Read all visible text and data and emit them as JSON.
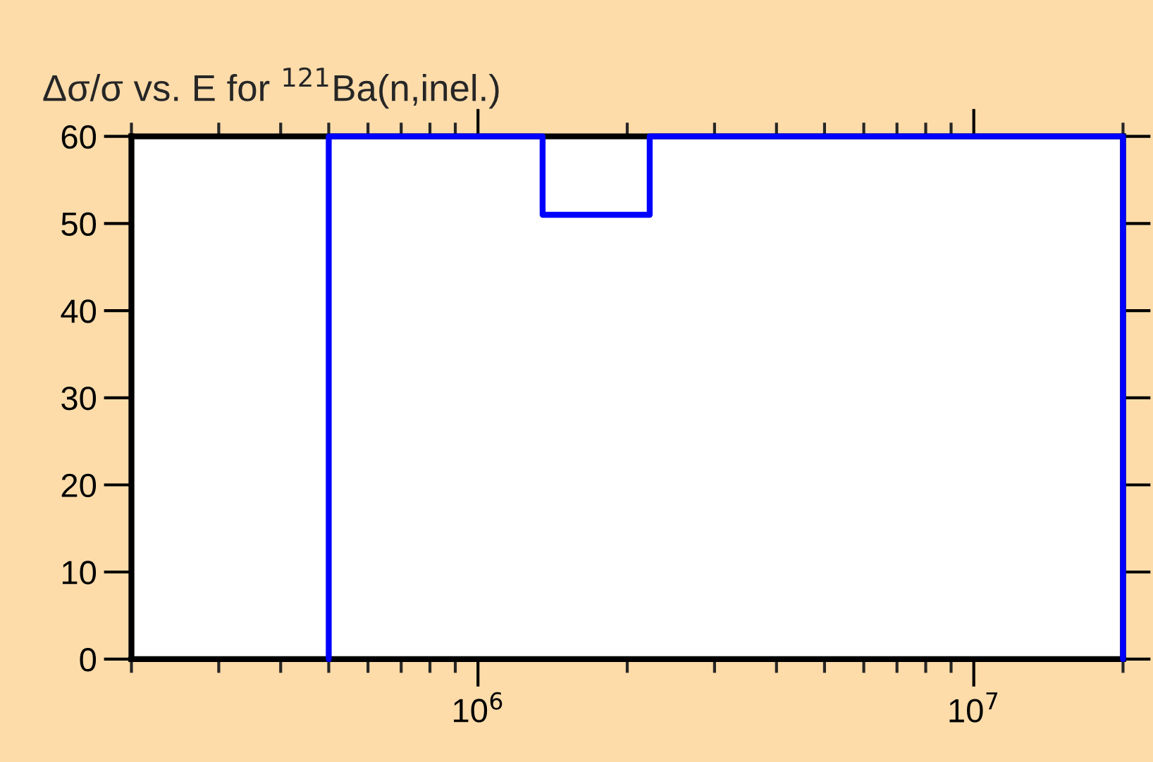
{
  "chart_data": {
    "type": "line",
    "title": "Δσ/σ vs. E for $^{121}$Ba(n,inel.)",
    "x": [
      500000,
      500000,
      1350000,
      1350000,
      2220000,
      2220000,
      20000000,
      20000000
    ],
    "series": [
      {
        "color": "#0000ff",
        "values": [
          0,
          60,
          60,
          51,
          51,
          60,
          60,
          0
        ]
      }
    ],
    "log": "x",
    "xlim": [
      200000,
      20000000
    ],
    "xticks": [
      {
        "value": 200000,
        "label": null
      },
      {
        "value": 300000,
        "label": null
      },
      {
        "value": 400000,
        "label": null
      },
      {
        "value": 500000,
        "label": null
      },
      {
        "value": 600000,
        "label": null
      },
      {
        "value": 700000,
        "label": null
      },
      {
        "value": 800000,
        "label": null
      },
      {
        "value": 900000,
        "label": null
      },
      {
        "value": 1000000,
        "label": "10$^{6}$"
      },
      {
        "value": 2000000,
        "label": null
      },
      {
        "value": 3000000,
        "label": null
      },
      {
        "value": 4000000,
        "label": null
      },
      {
        "value": 5000000,
        "label": null
      },
      {
        "value": 6000000,
        "label": null
      },
      {
        "value": 7000000,
        "label": null
      },
      {
        "value": 8000000,
        "label": null
      },
      {
        "value": 9000000,
        "label": null
      },
      {
        "value": 10000000,
        "label": "10$^{7}$"
      },
      {
        "value": 20000000,
        "label": null
      }
    ],
    "ylim": [
      0,
      60
    ],
    "yticks": [
      0,
      10,
      20,
      30,
      40,
      50,
      60
    ],
    "grid": false,
    "marker": "none",
    "line_style": "solid"
  }
}
